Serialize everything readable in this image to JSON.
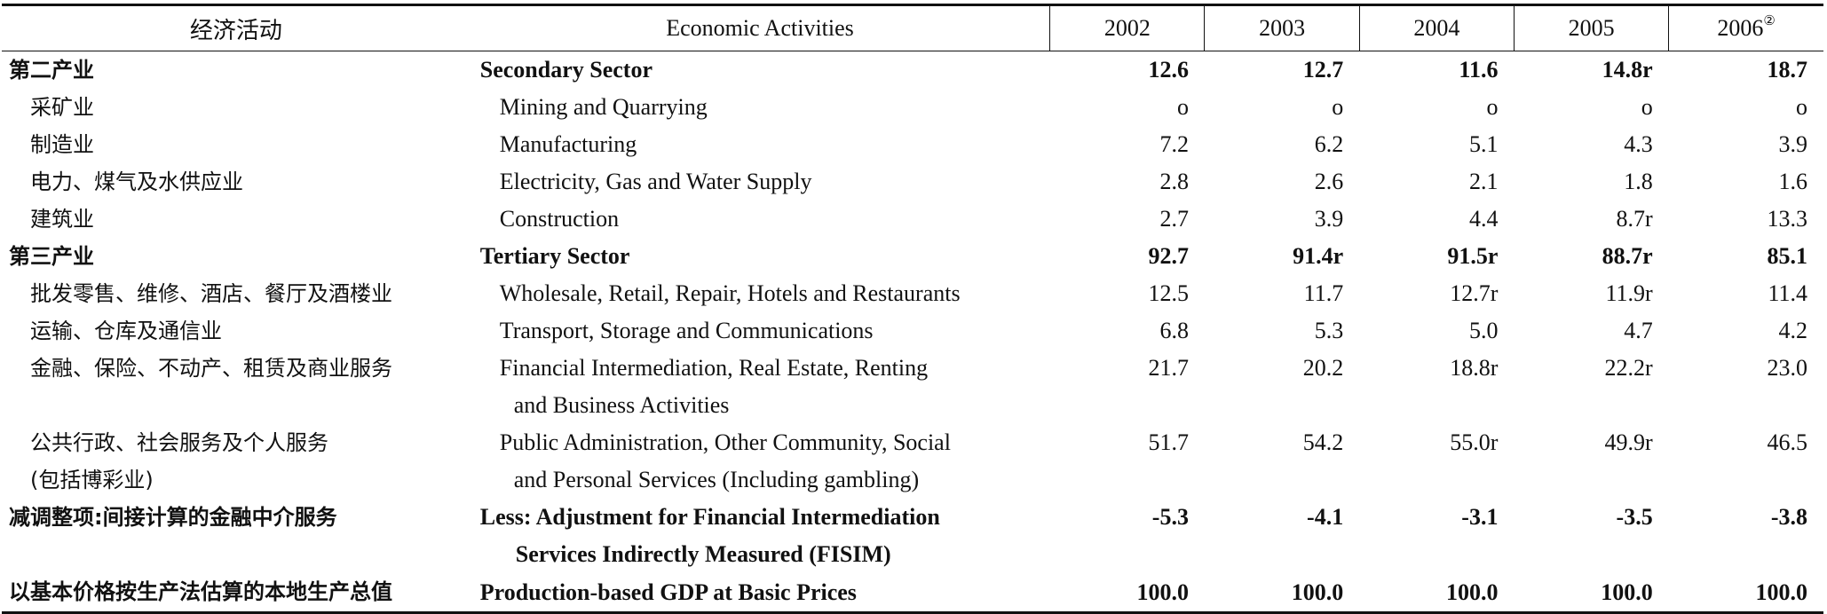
{
  "header": {
    "col_cn": "经济活动",
    "col_en": "Economic Activities",
    "years": [
      "2002",
      "2003",
      "2004",
      "2005",
      "2006"
    ],
    "year_2006_note": "②"
  },
  "rows": [
    {
      "cn": "第二产业",
      "en": "Secondary Sector",
      "values": [
        "12.6",
        "12.7",
        "11.6",
        "14.8r",
        "18.7"
      ]
    },
    {
      "cn": "采矿业",
      "en": "Mining and Quarrying",
      "values": [
        "o",
        "o",
        "o",
        "o",
        "o"
      ]
    },
    {
      "cn": "制造业",
      "en": "Manufacturing",
      "values": [
        "7.2",
        "6.2",
        "5.1",
        "4.3",
        "3.9"
      ]
    },
    {
      "cn": "电力、煤气及水供应业",
      "en": "Electricity, Gas and Water Supply",
      "values": [
        "2.8",
        "2.6",
        "2.1",
        "1.8",
        "1.6"
      ]
    },
    {
      "cn": "建筑业",
      "en": "Construction",
      "values": [
        "2.7",
        "3.9",
        "4.4",
        "8.7r",
        "13.3"
      ]
    },
    {
      "cn": "第三产业",
      "en": "Tertiary Sector",
      "values": [
        "92.7",
        "91.4r",
        "91.5r",
        "88.7r",
        "85.1"
      ]
    },
    {
      "cn": "批发零售、维修、酒店、餐厅及酒楼业",
      "en": "Wholesale, Retail, Repair, Hotels and Restaurants",
      "values": [
        "12.5",
        "11.7",
        "12.7r",
        "11.9r",
        "11.4"
      ]
    },
    {
      "cn": "运输、仓库及通信业",
      "en": "Transport, Storage and Communications",
      "values": [
        "6.8",
        "5.3",
        "5.0",
        "4.7",
        "4.2"
      ]
    },
    {
      "cn": "金融、保险、不动产、租赁及商业服务",
      "en": "Financial Intermediation, Real Estate, Renting",
      "en2": "and Business Activities",
      "values": [
        "21.7",
        "20.2",
        "18.8r",
        "22.2r",
        "23.0"
      ]
    },
    {
      "cn": "公共行政、社会服务及个人服务",
      "cn2": "(包括博彩业)",
      "en": "Public Administration, Other Community, Social",
      "en2": "and Personal Services (Including gambling)",
      "values": [
        "51.7",
        "54.2",
        "55.0r",
        "49.9r",
        "46.5"
      ]
    },
    {
      "cn": "减调整项:间接计算的金融中介服务",
      "en": "Less: Adjustment for Financial Intermediation",
      "en2": "Services Indirectly Measured (FISIM)",
      "values": [
        "-5.3",
        "-4.1",
        "-3.1",
        "-3.5",
        "-3.8"
      ]
    },
    {
      "cn": "以基本价格按生产法估算的本地生产总值",
      "en": "Production-based GDP at Basic Prices",
      "values": [
        "100.0",
        "100.0",
        "100.0",
        "100.0",
        "100.0"
      ]
    }
  ]
}
